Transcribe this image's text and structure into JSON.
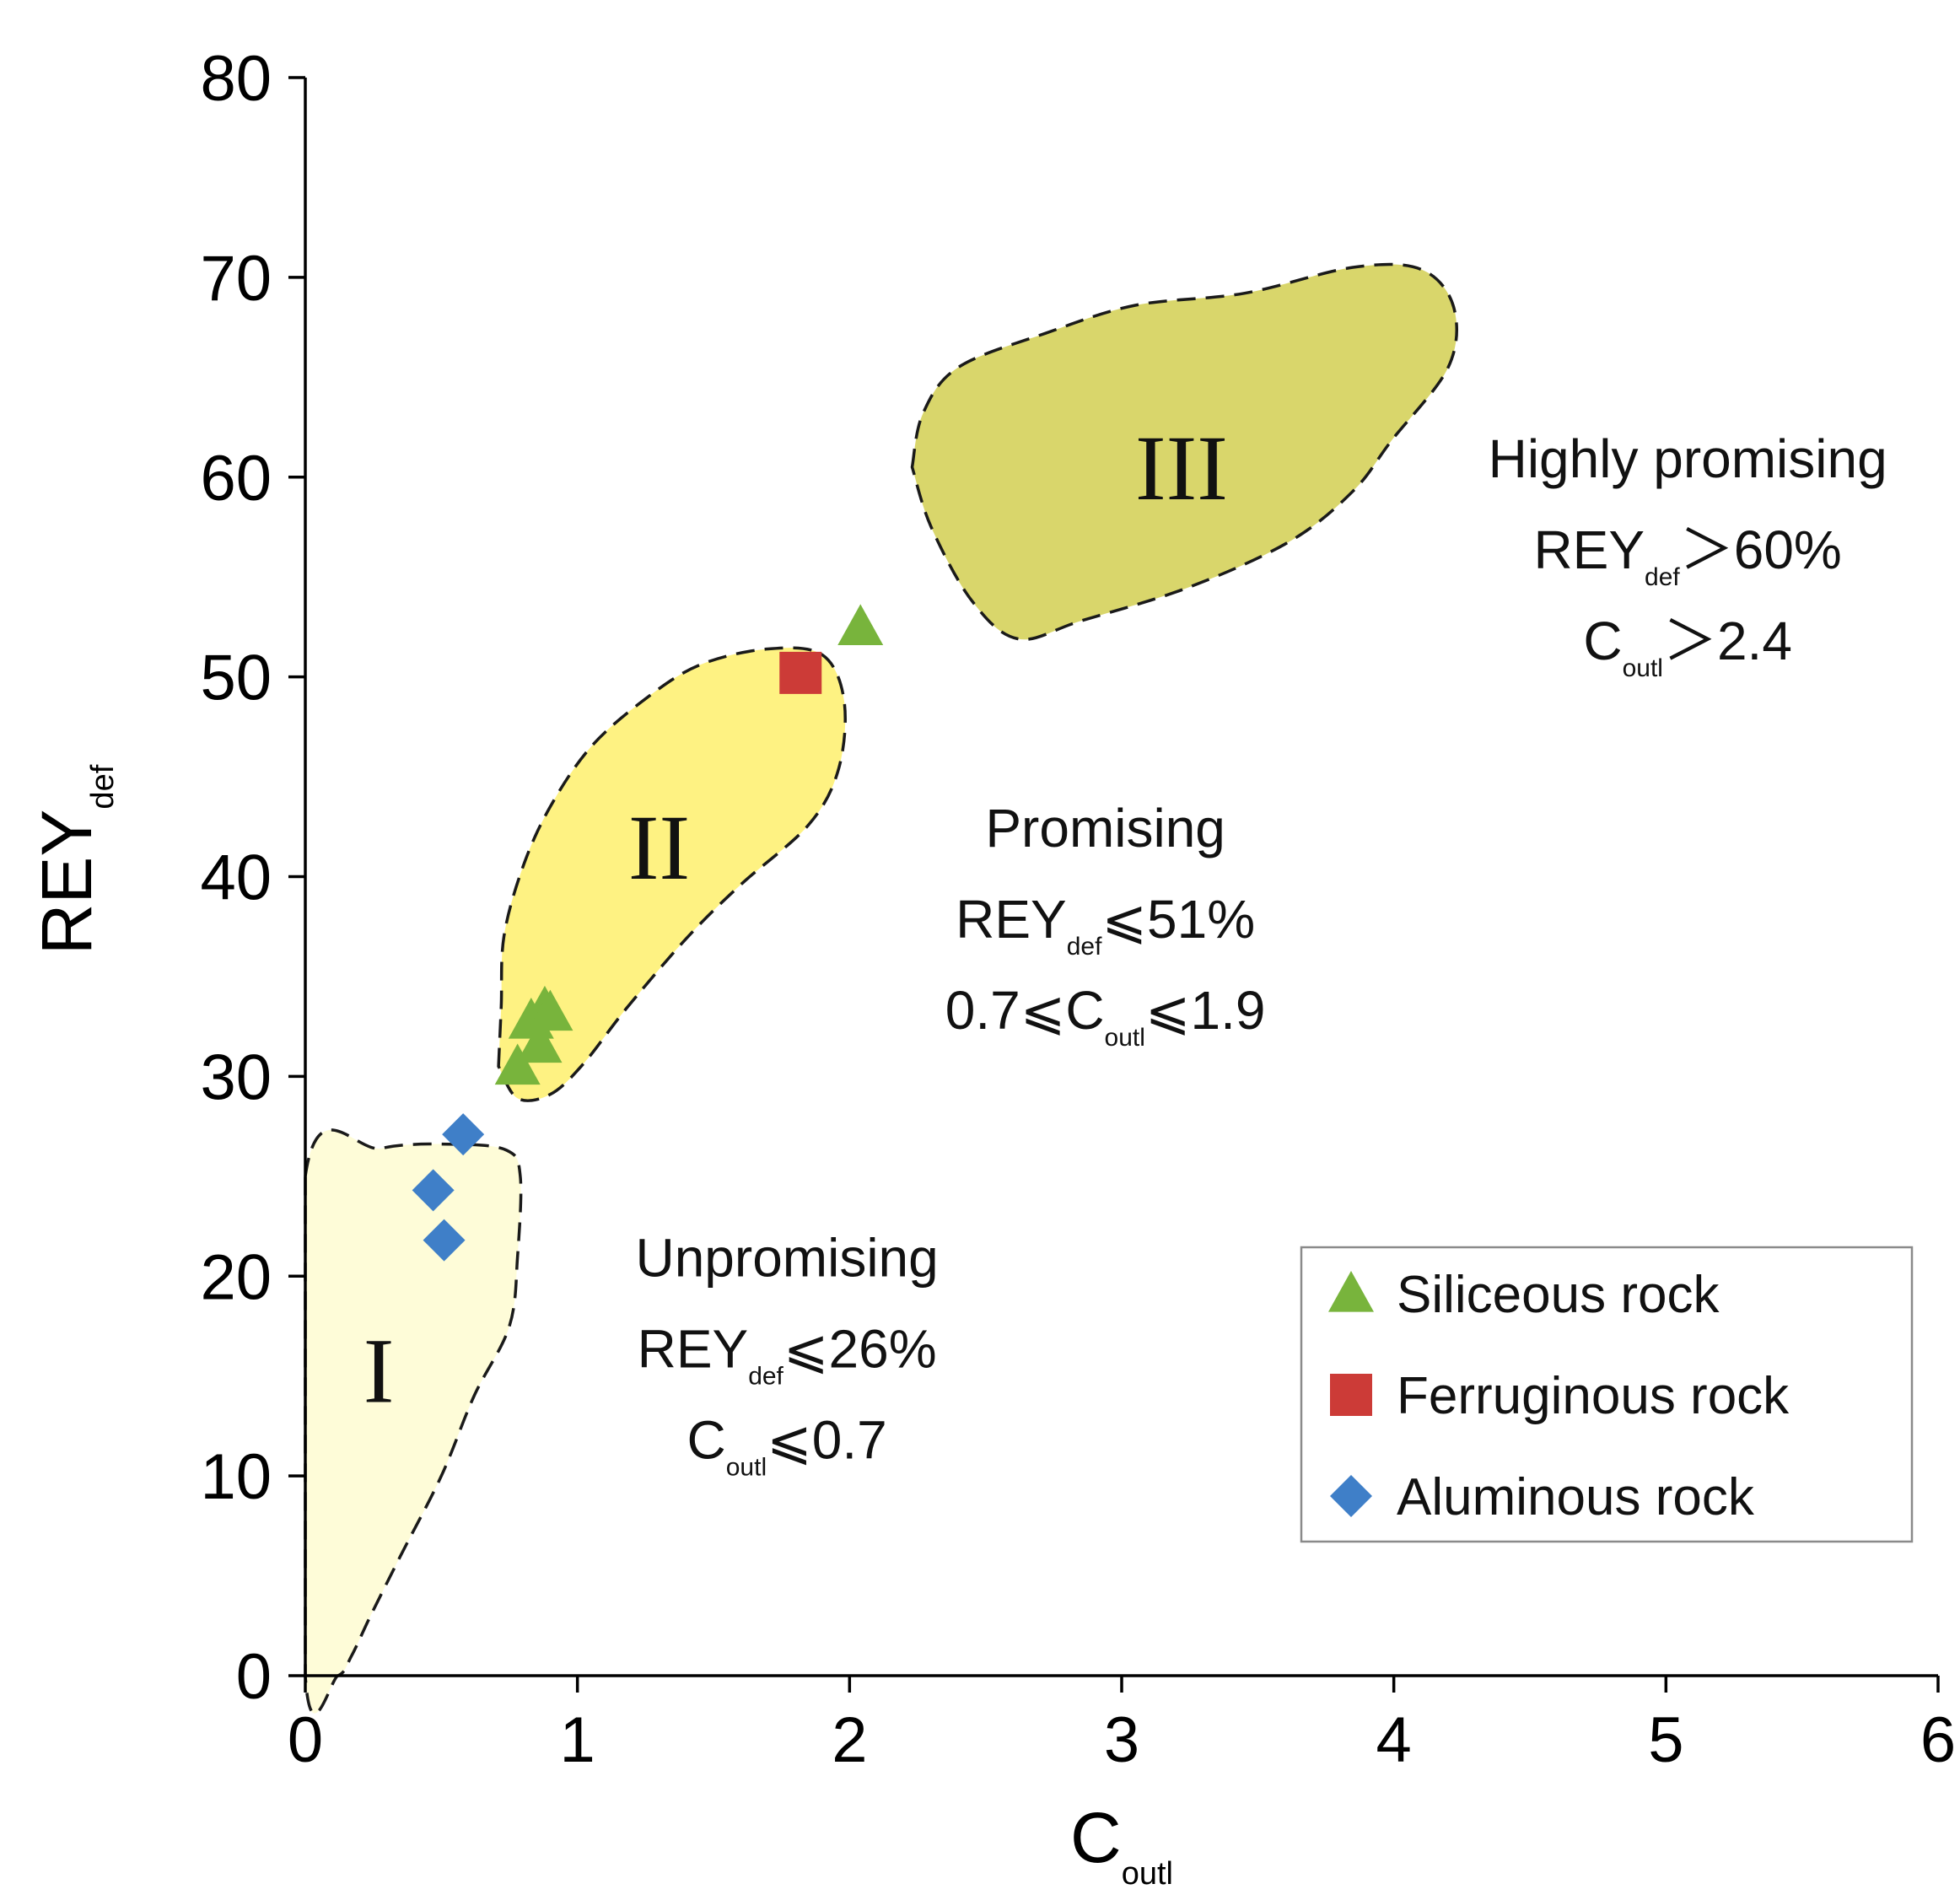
{
  "chart_data": {
    "type": "scatter",
    "xlabel": {
      "main": "C",
      "sub": "outl"
    },
    "ylabel": {
      "main": "REY",
      "sub": "def"
    },
    "xlim": [
      0,
      6
    ],
    "ylim": [
      0,
      80
    ],
    "xticks": [
      "0",
      "1",
      "2",
      "3",
      "4",
      "5",
      "6"
    ],
    "yticks": [
      "0",
      "10",
      "20",
      "30",
      "40",
      "50",
      "60",
      "70",
      "80"
    ],
    "grid": false,
    "legend_position": "bottom-right",
    "series": [
      {
        "name": "Siliceous rock",
        "marker": "triangle",
        "color": "#78b43c",
        "points": [
          [
            0.78,
            30.5
          ],
          [
            0.83,
            32.8
          ],
          [
            0.86,
            31.6
          ],
          [
            0.88,
            33.4
          ],
          [
            0.9,
            33.2
          ],
          [
            2.04,
            52.5
          ]
        ]
      },
      {
        "name": "Ferruginous rock",
        "marker": "square",
        "color": "#cc3b37",
        "points": [
          [
            1.82,
            50.2
          ]
        ]
      },
      {
        "name": "Aluminous rock",
        "marker": "diamond",
        "color": "#3f7fc8",
        "points": [
          [
            0.58,
            27.1
          ],
          [
            0.47,
            24.3
          ],
          [
            0.51,
            21.8
          ]
        ]
      }
    ],
    "regions": [
      {
        "label": "I",
        "fill": "#fefcd8",
        "label_at": [
          0.27,
          15.3
        ],
        "outline": [
          [
            0,
            25
          ],
          [
            0.28,
            26.4
          ],
          [
            0.55,
            26.6
          ],
          [
            0.74,
            26.3
          ],
          [
            0.79,
            25
          ],
          [
            0.78,
            21
          ],
          [
            0.75,
            17.5
          ],
          [
            0.62,
            14
          ],
          [
            0.5,
            10
          ],
          [
            0.35,
            6
          ],
          [
            0.24,
            3
          ],
          [
            0.17,
            1
          ],
          [
            0.12,
            0
          ],
          [
            0,
            0
          ]
        ]
      },
      {
        "label": "II",
        "fill": "#fef282",
        "label_at": [
          1.3,
          41.5
        ],
        "outline": [
          [
            0.71,
            30.5
          ],
          [
            0.72,
            33.5
          ],
          [
            0.73,
            37
          ],
          [
            0.8,
            40.5
          ],
          [
            0.9,
            43.5
          ],
          [
            1.05,
            46.5
          ],
          [
            1.25,
            48.9
          ],
          [
            1.45,
            50.6
          ],
          [
            1.7,
            51.4
          ],
          [
            1.9,
            51.1
          ],
          [
            1.98,
            48.8
          ],
          [
            1.96,
            45.4
          ],
          [
            1.85,
            42.6
          ],
          [
            1.6,
            39.6
          ],
          [
            1.4,
            36.9
          ],
          [
            1.18,
            33.4
          ],
          [
            1.02,
            30.6
          ],
          [
            0.9,
            29.1
          ],
          [
            0.78,
            28.9
          ],
          [
            0.71,
            30.5
          ]
        ]
      },
      {
        "label": "III",
        "fill": "#d9d66b",
        "label_at": [
          3.22,
          60.5
        ],
        "outline": [
          [
            2.23,
            60.5
          ],
          [
            2.27,
            63.2
          ],
          [
            2.4,
            65.5
          ],
          [
            2.72,
            67.2
          ],
          [
            3.05,
            68.6
          ],
          [
            3.45,
            69.2
          ],
          [
            3.85,
            70.5
          ],
          [
            4.1,
            70.4
          ],
          [
            4.22,
            68.5
          ],
          [
            4.2,
            65.5
          ],
          [
            3.99,
            61.8
          ],
          [
            3.85,
            59.3
          ],
          [
            3.62,
            56.8
          ],
          [
            3.25,
            54.5
          ],
          [
            2.85,
            52.8
          ],
          [
            2.62,
            51.9
          ],
          [
            2.45,
            53.8
          ],
          [
            2.3,
            57.5
          ],
          [
            2.23,
            60.5
          ]
        ]
      }
    ],
    "annotations": [
      {
        "id": "unpromising",
        "at": [
          1.77,
          20
        ],
        "lines": [
          [
            {
              "t": "Unpromising"
            }
          ],
          [
            {
              "t": "REY"
            },
            {
              "t": "def",
              "sub": true
            },
            {
              "t": "⩽26%"
            }
          ],
          [
            {
              "t": "C"
            },
            {
              "t": "outl",
              "sub": true
            },
            {
              "t": "⩽0.7"
            }
          ]
        ]
      },
      {
        "id": "promising",
        "at": [
          2.94,
          41.5
        ],
        "lines": [
          [
            {
              "t": "Promising"
            }
          ],
          [
            {
              "t": "REY"
            },
            {
              "t": "def",
              "sub": true
            },
            {
              "t": "⩽51%"
            }
          ],
          [
            {
              "t": "0.7⩽C"
            },
            {
              "t": "outl",
              "sub": true
            },
            {
              "t": "⩽1.9"
            }
          ]
        ]
      },
      {
        "id": "highly-promising",
        "at": [
          5.08,
          60
        ],
        "lines": [
          [
            {
              "t": "Highly promising"
            }
          ],
          [
            {
              "t": "REY"
            },
            {
              "t": "def",
              "sub": true
            },
            {
              "t": "＞60%"
            }
          ],
          [
            {
              "t": "C"
            },
            {
              "t": "outl",
              "sub": true
            },
            {
              "t": "＞2.4"
            }
          ]
        ]
      }
    ]
  }
}
